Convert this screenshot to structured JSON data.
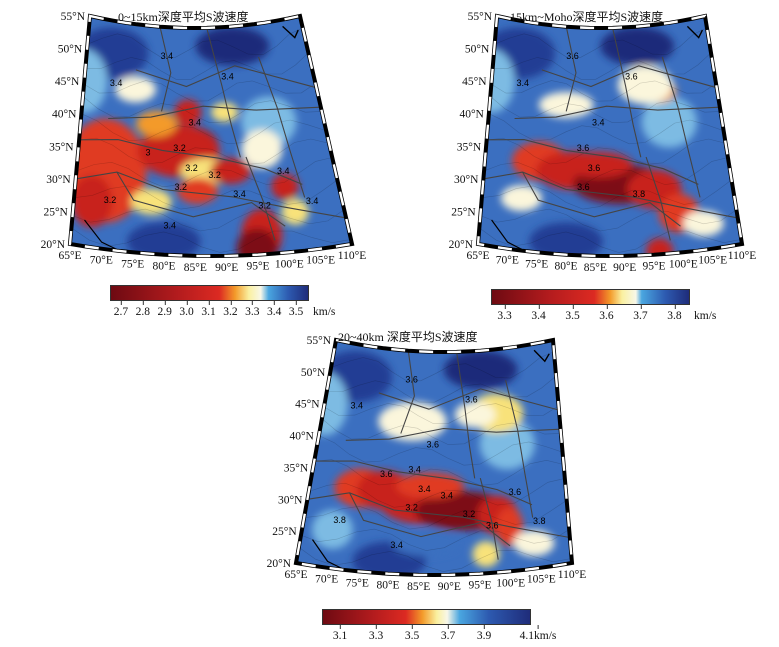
{
  "maps": [
    {
      "title": "0~15km深度平均S波速度",
      "lat_labels": [
        "55°N",
        "50°N",
        "45°N",
        "40°N",
        "35°N",
        "30°N",
        "25°N",
        "20°N"
      ],
      "lon_labels": [
        "65°E",
        "70°E",
        "75°E",
        "80°E",
        "85°E",
        "90°E",
        "95°E",
        "100°E",
        "105°E",
        "110°E"
      ],
      "contour_labels": [
        "3.4",
        "3.4",
        "3.4",
        "3.4",
        "3.2",
        "3.2",
        "3.2",
        "3.4",
        "3.2",
        "3.2",
        "3.4",
        "3.4",
        "3.2",
        "3.4",
        "3"
      ],
      "colorbar": {
        "ticks": [
          "2.7",
          "2.8",
          "2.9",
          "3.0",
          "3.1",
          "3.2",
          "3.3",
          "3.4",
          "3.5"
        ],
        "unit": "km/s",
        "range": [
          2.65,
          3.55
        ]
      }
    },
    {
      "title": "15km~Moho深度平均S波速度",
      "lat_labels": [
        "55°N",
        "50°N",
        "45°N",
        "40°N",
        "35°N",
        "30°N",
        "25°N",
        "20°N"
      ],
      "lon_labels": [
        "65°E",
        "70°E",
        "75°E",
        "80°E",
        "85°E",
        "90°E",
        "95°E",
        "100°E",
        "105°E",
        "110°E"
      ],
      "contour_labels": [
        "3.6",
        "3.6",
        "3.4",
        "3.4",
        "3.6",
        "3.6",
        "3.6",
        "3.8"
      ],
      "colorbar": {
        "ticks": [
          "3.3",
          "3.4",
          "3.5",
          "3.6",
          "3.7",
          "3.8"
        ],
        "unit": "km/s",
        "range": [
          3.26,
          3.84
        ]
      }
    },
    {
      "title": "20~40km 深度平均S波速度",
      "lat_labels": [
        "55°N",
        "50°N",
        "45°N",
        "40°N",
        "35°N",
        "30°N",
        "25°N",
        "20°N"
      ],
      "lon_labels": [
        "65°E",
        "70°E",
        "75°E",
        "80°E",
        "85°E",
        "90°E",
        "95°E",
        "100°E",
        "105°E",
        "110°E"
      ],
      "contour_labels": [
        "3.6",
        "3.6",
        "3.4",
        "3.6",
        "3.4",
        "3.4",
        "3.2",
        "3.2",
        "3.4",
        "3.6",
        "3.6",
        "3.8",
        "3.8",
        "3.4",
        "3.6"
      ],
      "colorbar": {
        "ticks": [
          "3.1",
          "3.3",
          "3.5",
          "3.7",
          "3.9",
          "4.1km/s"
        ],
        "unit": "",
        "range": [
          3.0,
          4.15
        ]
      }
    }
  ]
}
